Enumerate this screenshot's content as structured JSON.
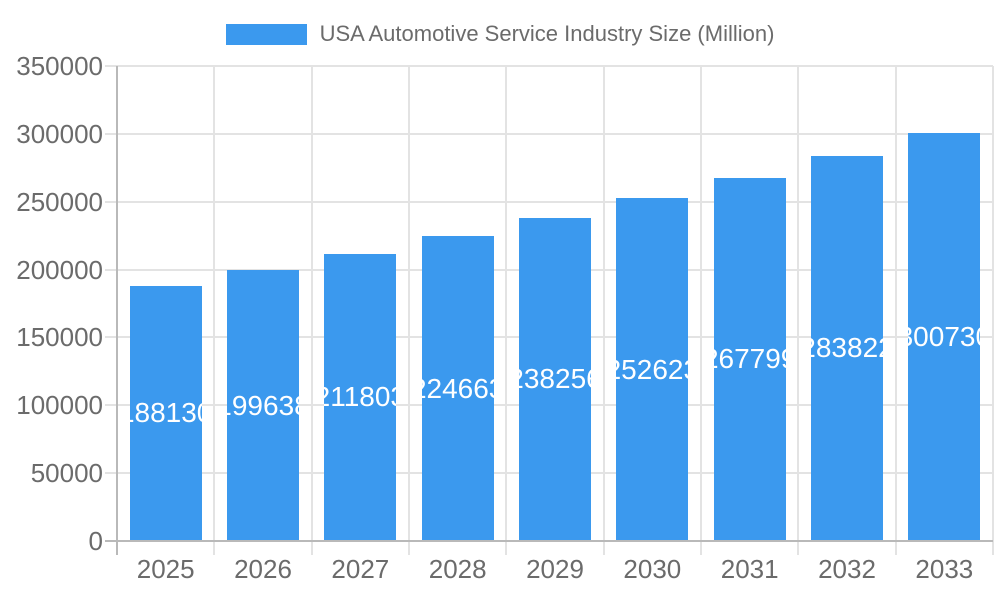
{
  "chart_data": {
    "type": "bar",
    "title": "USA Automotive Service Industry Size (Million)",
    "legend": {
      "label": "USA Automotive Service Industry Size (Million)",
      "position": "top"
    },
    "categories": [
      "2025",
      "2026",
      "2027",
      "2028",
      "2029",
      "2030",
      "2031",
      "2032",
      "2033"
    ],
    "series": [
      {
        "name": "USA Automotive Service Industry Size (Million)",
        "values": [
          188130,
          199638,
          211803,
          224663,
          238256,
          252623,
          267799,
          283822,
          300730
        ]
      }
    ],
    "bar_value_labels": [
      "188130",
      "199638",
      "211803",
      "224663",
      "238256",
      "252623",
      "267799",
      "283822",
      "300730"
    ],
    "xlabel": "",
    "ylabel": "",
    "ylim": [
      0,
      350000
    ],
    "ytick_step": 50000,
    "yticks": [
      "0",
      "50000",
      "100000",
      "150000",
      "200000",
      "250000",
      "300000",
      "350000"
    ],
    "grid": true,
    "colors": {
      "bar": "#3b99ee",
      "bar_label_text": "#ffffff",
      "grid_line": "#e3e3e3",
      "zero_line": "#b9b9b9",
      "tick_text": "#6b6b6b",
      "legend_text": "#6b6b6b",
      "background": "#ffffff"
    }
  }
}
